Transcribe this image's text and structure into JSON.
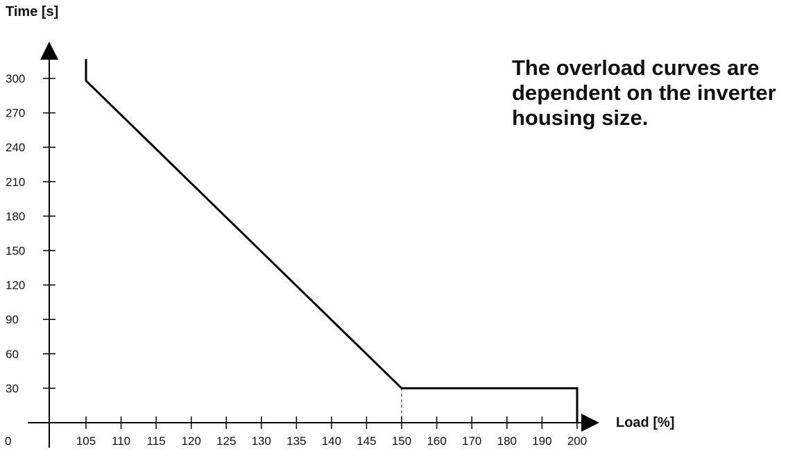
{
  "chart_data": {
    "type": "line",
    "title": "",
    "xlabel": "Load [%]",
    "ylabel": "Time [s]",
    "x_ticks": [
      "0",
      "105",
      "110",
      "115",
      "120",
      "125",
      "130",
      "135",
      "140",
      "145",
      "150",
      "160",
      "170",
      "180",
      "190",
      "200"
    ],
    "y_ticks": [
      "30",
      "60",
      "90",
      "120",
      "150",
      "180",
      "210",
      "240",
      "270",
      "300"
    ],
    "ylim": [
      0,
      330
    ],
    "series": [
      {
        "points": [
          {
            "x": 105,
            "y": 317
          },
          {
            "x": 105,
            "y": 298
          },
          {
            "x": 150,
            "y": 30
          },
          {
            "x": 200,
            "y": 30
          },
          {
            "x": 200,
            "y": 0
          }
        ]
      }
    ],
    "annotations": [
      {
        "type": "dashed-vertical",
        "x": 150,
        "y_from": 0,
        "y_to": 30
      }
    ],
    "annotation_text": "The overload curves are dependent on the inverter housing size.",
    "grid": false,
    "line_color": "#000000"
  }
}
